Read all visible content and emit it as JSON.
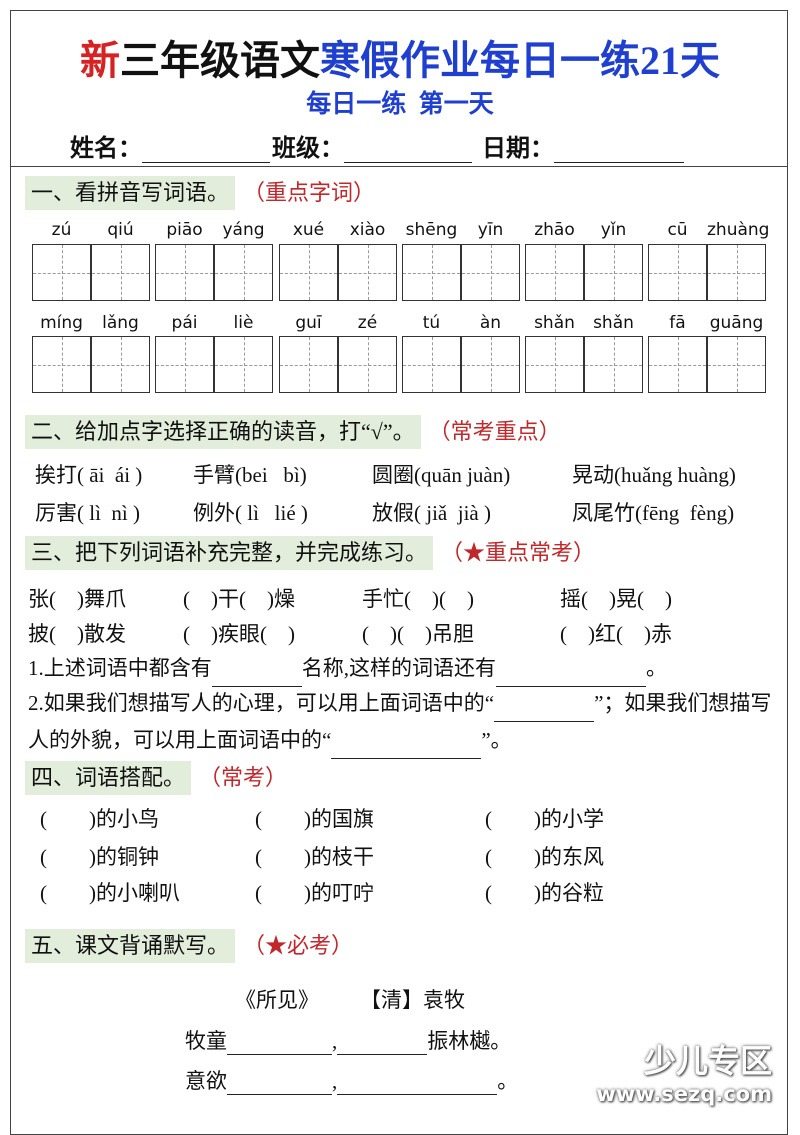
{
  "header": {
    "title": [
      "新",
      "三年级语文",
      "寒假作业每日一练21天"
    ],
    "subtitle": "每日一练  第一天",
    "fields": [
      "姓名：",
      "班级：",
      "日期："
    ]
  },
  "sections": [
    {
      "heading": "一、看拼音写词语。",
      "tag": "（重点字词）",
      "pinyin": [
        [
          [
            "zú",
            "qiú"
          ],
          [
            "piāo",
            "yáng"
          ],
          [
            "xué",
            "xiào"
          ],
          [
            "shēng",
            "yīn"
          ],
          [
            "zhāo",
            "yǐn"
          ],
          [
            "cū",
            "zhuàng"
          ]
        ],
        [
          [
            "míng",
            "lǎng"
          ],
          [
            "pái",
            "liè"
          ],
          [
            "guī",
            "zé"
          ],
          [
            "tú",
            "àn"
          ],
          [
            "shǎn",
            "shǎn"
          ],
          [
            "fā",
            "guāng"
          ]
        ]
      ]
    },
    {
      "heading": "二、给加点字选择正确的读音，打“√”。",
      "tag": "（常考重点）",
      "items": [
        [
          "挨打( āi  ái )",
          "手臂(bei   bì)",
          "圆圈(quān juàn)",
          "晃动(huǎng huàng)"
        ],
        [
          "厉害( lì  nì )",
          "例外( lì   lié )",
          "放假( jiǎ  jià )",
          "凤尾竹(fēng  fèng)"
        ]
      ]
    },
    {
      "heading": "三、把下列词语补充完整，并完成练习。",
      "tag": "（★重点常考）",
      "items": [
        [
          "张(    )舞爪",
          "(    )干(    )燥",
          "手忙(    )(    )",
          "摇(    )晃(    )"
        ],
        [
          "披(    )散发",
          "(    )疾眼(    )",
          "(    )(    )吊胆",
          "(    )红(    )赤"
        ]
      ],
      "questions": [
        [
          "1.上述词语中都含有",
          "名称,这样的词语还有",
          "。"
        ],
        [
          "2.如果我们想描写人的心理，可以用上面词语中的“",
          "”；如果我们想描写人的外貌，可以用上面词语中的“",
          "”。"
        ]
      ]
    },
    {
      "heading": "四、词语搭配。",
      "tag": "（常考）",
      "items": [
        [
          "(        )的小鸟",
          "(        )的国旗",
          "(        )的小学"
        ],
        [
          "(        )的铜钟",
          "(        )的枝干",
          "(        )的东风"
        ],
        [
          "(        )的小喇叭",
          "(        )的叮咛",
          "(        )的谷粒"
        ]
      ]
    },
    {
      "heading": "五、课文背诵默写。",
      "tag": "（★必考）",
      "poem_title": "《所见》",
      "author": "【清】袁牧",
      "lines": [
        [
          "牧童",
          ",",
          "振林樾。"
        ],
        [
          "意欲",
          ",",
          "。"
        ]
      ]
    }
  ],
  "watermark": [
    "少儿专区",
    "www.sezq.com"
  ]
}
